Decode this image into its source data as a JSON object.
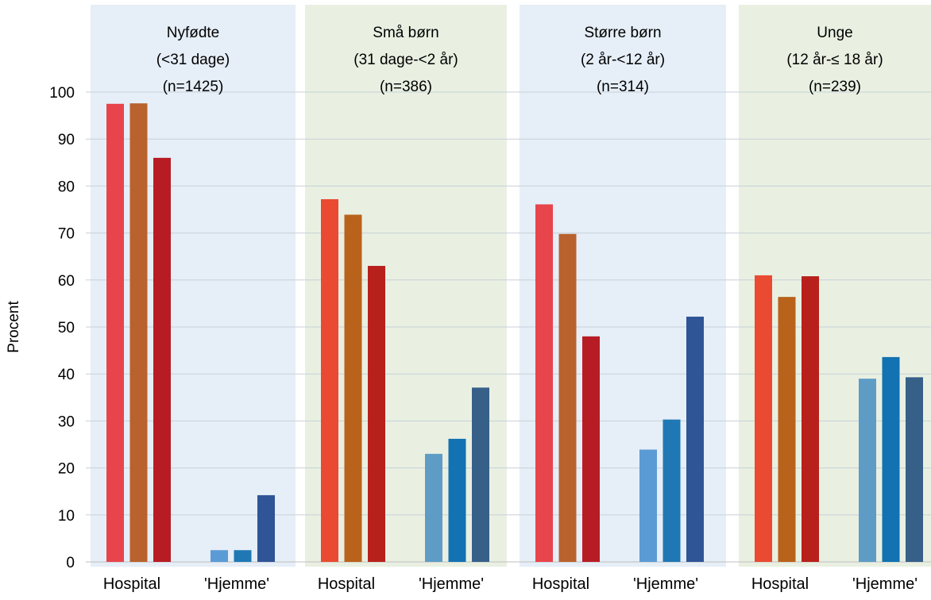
{
  "chart_data": {
    "type": "bar",
    "ylabel": "Procent",
    "ylim": [
      0,
      100
    ],
    "yticks": [
      0,
      10,
      20,
      30,
      40,
      50,
      60,
      70,
      80,
      90,
      100
    ],
    "grid": true,
    "groups": [
      {
        "title_lines": [
          "Nyfødte",
          "(<31 dage)",
          "(n=1425)"
        ],
        "background": "#e6eef7",
        "clusters": [
          {
            "label": "Hospital",
            "values": [
              97.5,
              97.6,
              86
            ],
            "colors": [
              "#e8444c",
              "#b9622e",
              "#b71c24"
            ]
          },
          {
            "label": "'Hjemme'",
            "values": [
              2.5,
              2.5,
              14.2
            ],
            "colors": [
              "#5b9bd5",
              "#1f78b4",
              "#2f5597"
            ]
          }
        ]
      },
      {
        "title_lines": [
          "Små børn",
          "(31 dage-<2 år)",
          "(n=386)"
        ],
        "background": "#e9f0e2",
        "clusters": [
          {
            "label": "Hospital",
            "values": [
              77.2,
              73.9,
              63
            ],
            "colors": [
              "#ea4a31",
              "#b9621b",
              "#b8211b"
            ]
          },
          {
            "label": "'Hjemme'",
            "values": [
              23,
              26.2,
              37.1
            ],
            "colors": [
              "#5e9cc6",
              "#1272b2",
              "#376089"
            ]
          }
        ]
      },
      {
        "title_lines": [
          "Større børn",
          "(2 år-<12 år)",
          "(n=314)"
        ],
        "background": "#e6eef7",
        "clusters": [
          {
            "label": "Hospital",
            "values": [
              76.1,
              69.8,
              48
            ],
            "colors": [
              "#e8444c",
              "#b9622e",
              "#b71c24"
            ]
          },
          {
            "label": "'Hjemme'",
            "values": [
              23.9,
              30.3,
              52.2
            ],
            "colors": [
              "#5b9bd5",
              "#1f78b4",
              "#2f5597"
            ]
          }
        ]
      },
      {
        "title_lines": [
          "Unge",
          "(12 år-≤ 18 år)",
          "(n=239)"
        ],
        "background": "#e9f0e2",
        "clusters": [
          {
            "label": "Hospital",
            "values": [
              61,
              56.4,
              60.8
            ],
            "colors": [
              "#ea4a31",
              "#b9621b",
              "#b8211b"
            ]
          },
          {
            "label": "'Hjemme'",
            "values": [
              39,
              43.6,
              39.3
            ],
            "colors": [
              "#5e9cc6",
              "#1272b2",
              "#376089"
            ]
          }
        ]
      }
    ]
  }
}
